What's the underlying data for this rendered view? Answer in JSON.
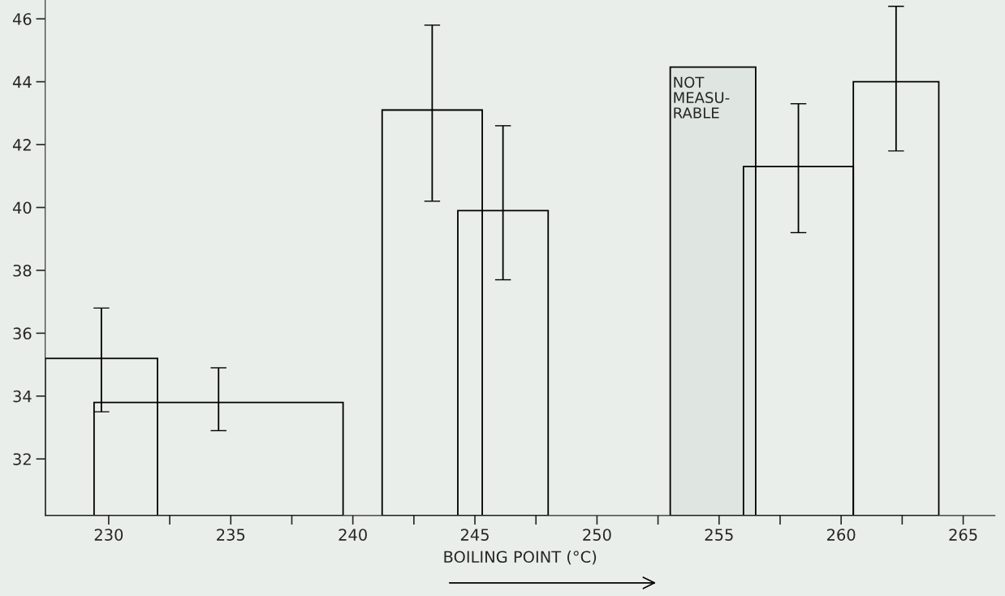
{
  "chart_data": {
    "type": "histogram",
    "xlabel": "BOILING POINT (°C)",
    "color": "#000000",
    "series": [
      {
        "values": [
          35.2,
          null,
          43.1,
          null,
          41.3,
          44.0
        ],
        "errors": [
          [
            33.5,
            36.8
          ],
          null,
          [
            40.2,
            45.8
          ],
          null,
          [
            39.2,
            43.3
          ],
          [
            41.8,
            46.4
          ]
        ]
      },
      {
        "bins": [
          229.4,
          239.6,
          244.3,
          248.0
        ],
        "values": [
          33.8,
          null,
          39.9
        ],
        "errors": [
          [
            32.9,
            34.9
          ],
          null,
          [
            37.7,
            42.6
          ]
        ]
      }
    ],
    "bins": [
      227.4,
      232.0,
      241.2,
      245.3,
      256.0,
      260.5,
      264.0
    ],
    "bands": [
      {
        "axis": "x",
        "from": 253.0,
        "to": 256.5,
        "label": "NOT\nMEASU-\nRABLE"
      }
    ],
    "xlim": [
      227.4,
      266.3
    ],
    "ylim": [
      30.2,
      46.6
    ],
    "xticks": [
      230,
      {
        "value": 232.5,
        "label": null
      },
      235,
      {
        "value": 237.5,
        "label": null
      },
      240,
      {
        "value": 242.5,
        "label": null
      },
      245,
      {
        "value": 247.5,
        "label": null
      },
      250,
      {
        "value": 252.5,
        "label": null
      },
      255,
      {
        "value": 257.5,
        "label": null
      },
      260,
      {
        "value": 262.5,
        "label": null
      },
      265
    ],
    "yticks": [
      32,
      34,
      36,
      38,
      40,
      42,
      44,
      46
    ],
    "grid": false,
    "legend": false
  }
}
